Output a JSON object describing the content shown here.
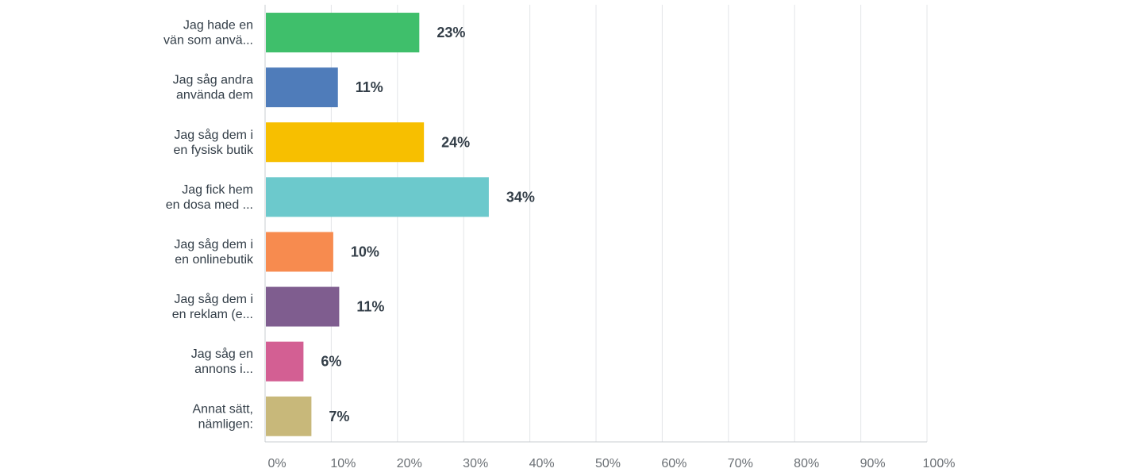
{
  "chart_data": {
    "type": "bar",
    "orientation": "horizontal",
    "title": "",
    "xlabel": "",
    "ylabel": "",
    "categories": [
      [
        "Jag hade en",
        "vän som anvä..."
      ],
      [
        "Jag såg andra",
        "använda dem"
      ],
      [
        "Jag såg dem i",
        "en fysisk butik"
      ],
      [
        "Jag fick hem",
        "en dosa med ..."
      ],
      [
        "Jag såg dem i",
        "en onlinebutik"
      ],
      [
        "Jag såg dem i",
        "en reklam (e..."
      ],
      [
        "Jag såg en",
        "annons i..."
      ],
      [
        "Annat sätt,",
        "nämligen:"
      ]
    ],
    "values": [
      23.3,
      11.0,
      24.0,
      33.8,
      10.3,
      11.2,
      5.8,
      7.0
    ],
    "value_labels": [
      "23%",
      "11%",
      "24%",
      "34%",
      "10%",
      "11%",
      "6%",
      "7%"
    ],
    "colors": [
      "#3fbf6b",
      "#4f7cba",
      "#f7bf00",
      "#6cc9cc",
      "#f78b4f",
      "#7f5d8f",
      "#d35f93",
      "#c8b87a"
    ],
    "xlim": [
      0,
      100
    ],
    "ticks": [
      0,
      10,
      20,
      30,
      40,
      50,
      60,
      70,
      80,
      90,
      100
    ],
    "tick_labels": [
      "0%",
      "10%",
      "20%",
      "30%",
      "40%",
      "50%",
      "60%",
      "70%",
      "80%",
      "90%",
      "100%"
    ],
    "grid": true,
    "legend": "none"
  }
}
